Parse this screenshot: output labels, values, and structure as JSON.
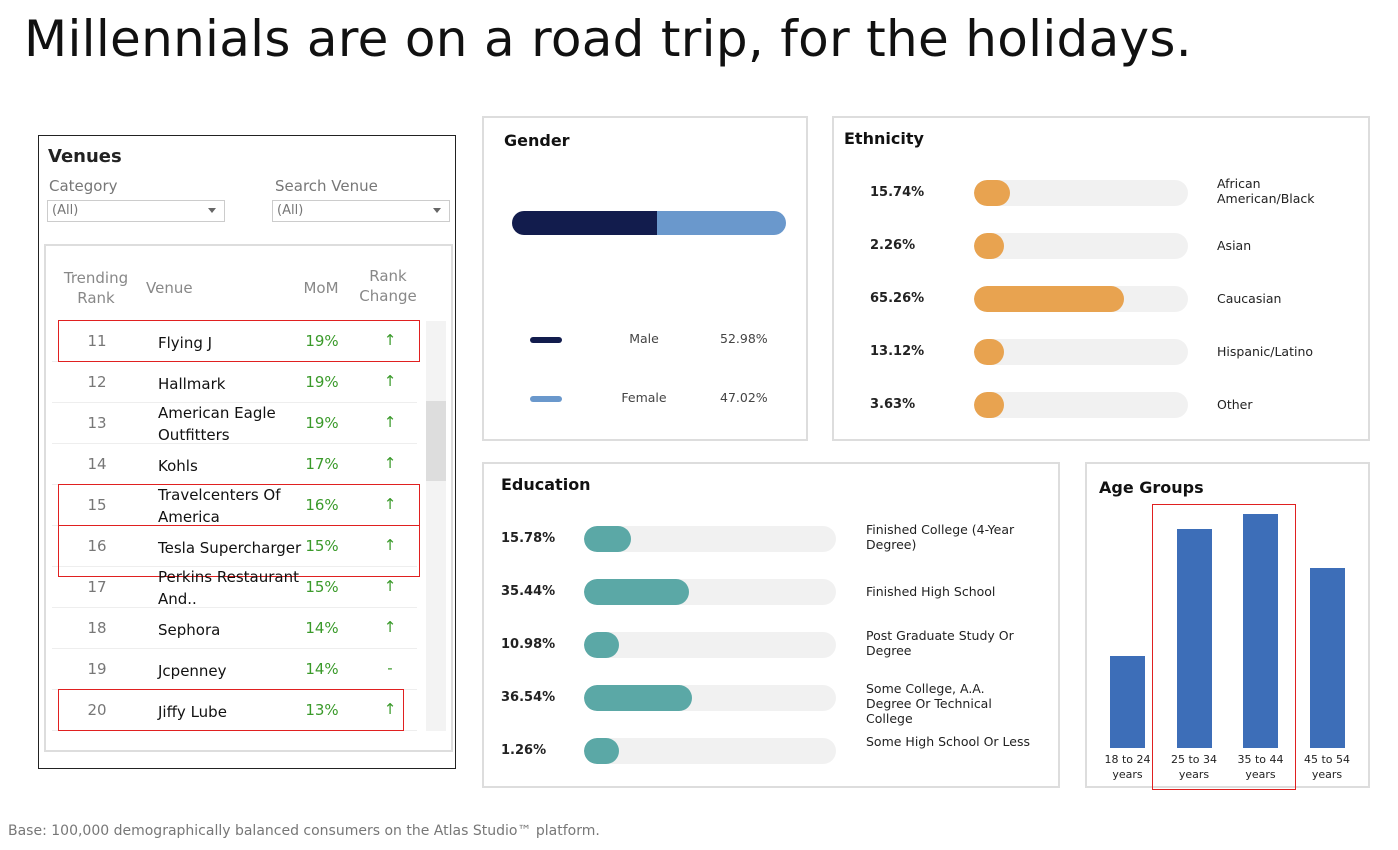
{
  "title": "Millennials are on a road trip, for the holidays.",
  "footer": "Base: 100,000 demographically balanced consumers on the Atlas Studio™ platform.",
  "venues": {
    "title": "Venues",
    "category_label": "Category",
    "category_value": "(All)",
    "search_label": "Search Venue",
    "search_value": "(All)",
    "headers": {
      "rank": "Trending Rank",
      "venue": "Venue",
      "mom": "MoM",
      "change": "Rank Change"
    },
    "rows": [
      {
        "rank": "11",
        "venue": "Flying J",
        "mom": "19%",
        "change": "↑",
        "highlighted": true
      },
      {
        "rank": "12",
        "venue": "Hallmark",
        "mom": "19%",
        "change": "↑",
        "highlighted": false
      },
      {
        "rank": "13",
        "venue": "American Eagle Outfitters",
        "mom": "19%",
        "change": "↑",
        "highlighted": false
      },
      {
        "rank": "14",
        "venue": "Kohls",
        "mom": "17%",
        "change": "↑",
        "highlighted": false
      },
      {
        "rank": "15",
        "venue": "Travelcenters Of America",
        "mom": "16%",
        "change": "↑",
        "highlighted": true
      },
      {
        "rank": "16",
        "venue": "Tesla Supercharger",
        "mom": "15%",
        "change": "↑",
        "highlighted": true
      },
      {
        "rank": "17",
        "venue": "Perkins Restaurant And..",
        "mom": "15%",
        "change": "↑",
        "highlighted": false
      },
      {
        "rank": "18",
        "venue": "Sephora",
        "mom": "14%",
        "change": "↑",
        "highlighted": false
      },
      {
        "rank": "19",
        "venue": "Jcpenney",
        "mom": "14%",
        "change": "-",
        "highlighted": false
      },
      {
        "rank": "20",
        "venue": "Jiffy Lube",
        "mom": "13%",
        "change": "↑",
        "highlighted": true
      }
    ]
  },
  "gender": {
    "title": "Gender",
    "colors": {
      "Male": "#121c4d",
      "Female": "#6a98cc"
    },
    "items": [
      {
        "label": "Male",
        "pct": "52.98%",
        "value": 52.98
      },
      {
        "label": "Female",
        "pct": "47.02%",
        "value": 47.02
      }
    ]
  },
  "ethnicity": {
    "title": "Ethnicity",
    "color": "#e8a350",
    "items": [
      {
        "label": "African American/Black",
        "pct": "15.74%",
        "value": 15.74
      },
      {
        "label": "Asian",
        "pct": "2.26%",
        "value": 2.26
      },
      {
        "label": "Caucasian",
        "pct": "65.26%",
        "value": 65.26
      },
      {
        "label": "Hispanic/Latino",
        "pct": "13.12%",
        "value": 13.12
      },
      {
        "label": "Other",
        "pct": "3.63%",
        "value": 3.63
      }
    ]
  },
  "education": {
    "title": "Education",
    "color": "#5ba8a6",
    "items": [
      {
        "label": "Finished College (4-Year Degree)",
        "pct": "15.78%",
        "value": 15.78
      },
      {
        "label": "Finished High School",
        "pct": "35.44%",
        "value": 35.44
      },
      {
        "label": "Post Graduate Study Or Degree",
        "pct": "10.98%",
        "value": 10.98
      },
      {
        "label": "Some College, A.A. Degree Or Technical College",
        "pct": "36.54%",
        "value": 36.54
      },
      {
        "label": "Some High School Or Less",
        "pct": "1.26%",
        "value": 1.26
      }
    ]
  },
  "age": {
    "title": "Age Groups",
    "color": "#3d6eb8",
    "chart_data": {
      "type": "bar",
      "categories": [
        "18 to 24 years",
        "25 to 34 years",
        "35 to 44 years",
        "45 to 54 years"
      ],
      "values": [
        12.7,
        30.2,
        32.3,
        24.8
      ],
      "highlighted": [
        "25 to 34 years",
        "35 to 44 years"
      ]
    }
  }
}
